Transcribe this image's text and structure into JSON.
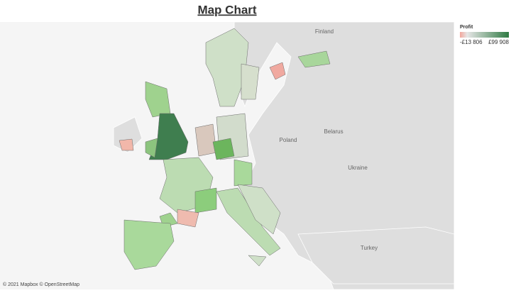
{
  "title": "Map Chart",
  "legend": {
    "title": "Profit",
    "min_label": "-£13 806",
    "max_label": "£99 908"
  },
  "map_labels": [
    "Finland",
    "Poland",
    "Belarus",
    "Ukraine",
    "Turkey"
  ],
  "attribution": "© 2021 Mapbox © OpenStreetMap"
}
